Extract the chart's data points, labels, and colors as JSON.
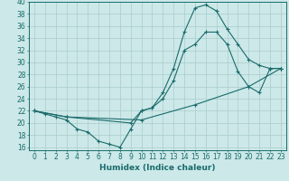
{
  "title": "",
  "xlabel": "Humidex (Indice chaleur)",
  "bg_color": "#cce8e8",
  "grid_color": "#aacccc",
  "line_color": "#1a6b6b",
  "xlim": [
    -0.5,
    23.5
  ],
  "ylim": [
    15.5,
    40
  ],
  "xticks": [
    0,
    1,
    2,
    3,
    4,
    5,
    6,
    7,
    8,
    9,
    10,
    11,
    12,
    13,
    14,
    15,
    16,
    17,
    18,
    19,
    20,
    21,
    22,
    23
  ],
  "yticks": [
    16,
    18,
    20,
    22,
    24,
    26,
    28,
    30,
    32,
    34,
    36,
    38,
    40
  ],
  "curve1": [
    [
      0,
      22
    ],
    [
      1,
      21.5
    ],
    [
      2,
      21
    ],
    [
      3,
      20.5
    ],
    [
      4,
      19
    ],
    [
      5,
      18.5
    ],
    [
      6,
      17
    ],
    [
      7,
      16.5
    ],
    [
      8,
      16
    ],
    [
      9,
      19
    ],
    [
      10,
      22
    ],
    [
      11,
      22.5
    ],
    [
      12,
      25
    ],
    [
      13,
      29
    ],
    [
      14,
      35
    ],
    [
      15,
      39
    ],
    [
      16,
      39.5
    ],
    [
      17,
      38.5
    ],
    [
      18,
      35.5
    ],
    [
      19,
      33
    ],
    [
      20,
      30.5
    ],
    [
      21,
      29.5
    ],
    [
      22,
      29
    ],
    [
      23,
      29
    ]
  ],
  "curve2": [
    [
      0,
      22
    ],
    [
      3,
      21
    ],
    [
      10,
      20.5
    ],
    [
      15,
      23
    ],
    [
      20,
      26
    ],
    [
      23,
      29
    ]
  ],
  "curve3": [
    [
      0,
      22
    ],
    [
      3,
      21
    ],
    [
      9,
      20
    ],
    [
      10,
      22
    ],
    [
      11,
      22.5
    ],
    [
      12,
      24
    ],
    [
      13,
      27
    ],
    [
      14,
      32
    ],
    [
      15,
      33
    ],
    [
      16,
      35
    ],
    [
      17,
      35
    ],
    [
      18,
      33
    ],
    [
      19,
      28.5
    ],
    [
      20,
      26
    ],
    [
      21,
      25
    ],
    [
      22,
      29
    ],
    [
      23,
      29
    ]
  ]
}
